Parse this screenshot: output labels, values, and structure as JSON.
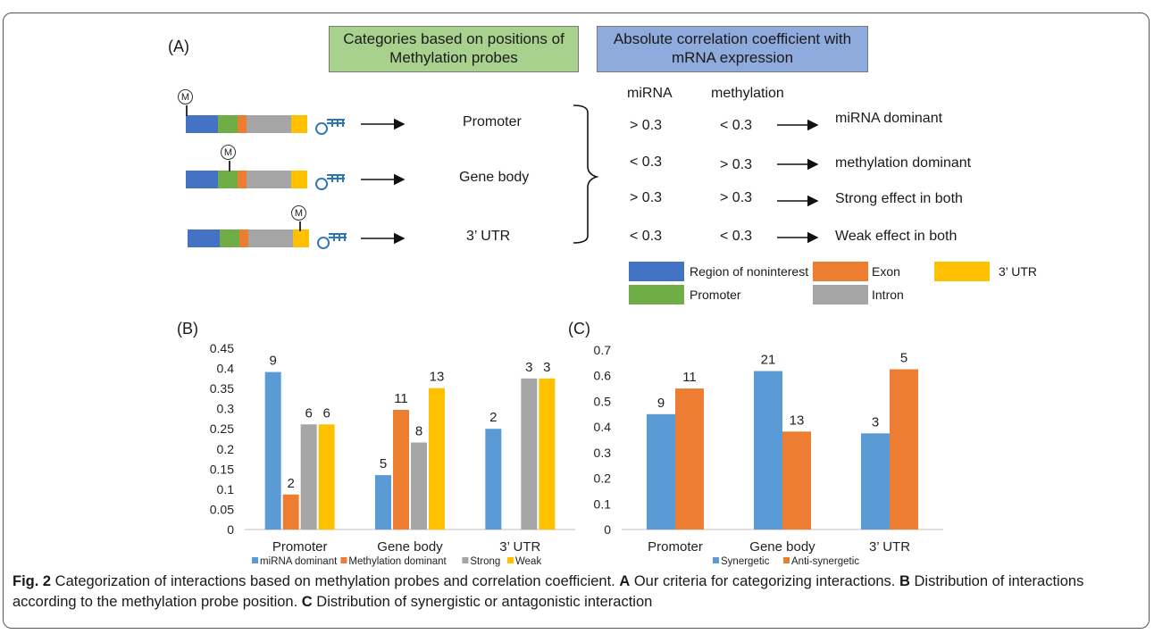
{
  "panel_a": {
    "letter": "(A)",
    "header_left": [
      "Categories based on positions of",
      "Methylation probes"
    ],
    "header_right": [
      "Absolute correlation coefficient with",
      "mRNA expression"
    ],
    "probe_marker": "M",
    "categories": [
      "Promoter",
      "Gene body",
      "3’ UTR"
    ],
    "col_mirna": "miRNA",
    "col_methylation": "methylation",
    "rules": [
      {
        "mirna": "> 0.3",
        "methylation": "< 0.3",
        "result": "miRNA dominant"
      },
      {
        "mirna": "< 0.3",
        "methylation": "> 0.3",
        "result": "methylation dominant"
      },
      {
        "mirna": "> 0.3",
        "methylation": "> 0.3",
        "result": "Strong effect in both"
      },
      {
        "mirna": "< 0.3",
        "methylation": "< 0.3",
        "result": "Weak effect in both"
      }
    ],
    "legend": [
      {
        "label": "Region of noninterest",
        "color": "#4472c4"
      },
      {
        "label": "Exon",
        "color": "#ed7d31"
      },
      {
        "label": "3’ UTR",
        "color": "#ffc000"
      },
      {
        "label": "Promoter",
        "color": "#70ad47"
      },
      {
        "label": "Intron",
        "color": "#a5a5a5"
      }
    ],
    "colors": {
      "header_left_bg": "#a9d18e",
      "header_right_bg": "#8faadc",
      "hairpin": "#2e75b6"
    }
  },
  "chart_data": [
    {
      "panel": "(B)",
      "type": "bar",
      "categories": [
        "Promoter",
        "Gene body",
        "3’ UTR"
      ],
      "series": [
        {
          "name": "miRNA dominant",
          "color": "#5b9bd5",
          "values": [
            0.391,
            0.135,
            0.25
          ],
          "labels": [
            "9",
            "5",
            "2"
          ]
        },
        {
          "name": "Methylation dominant",
          "color": "#ed7d31",
          "values": [
            0.087,
            0.297,
            null
          ],
          "labels": [
            "2",
            "11",
            ""
          ]
        },
        {
          "name": "Strong",
          "color": "#a5a5a5",
          "values": [
            0.261,
            0.216,
            0.375
          ],
          "labels": [
            "6",
            "8",
            "3"
          ]
        },
        {
          "name": "Weak",
          "color": "#ffc000",
          "values": [
            0.261,
            0.351,
            0.375
          ],
          "labels": [
            "6",
            "13",
            "3"
          ]
        }
      ],
      "ylim": [
        0,
        0.45
      ],
      "yticks": [
        "0",
        "0.05",
        "0.1",
        "0.15",
        "0.2",
        "0.25",
        "0.3",
        "0.35",
        "0.4",
        "0.45"
      ],
      "xlabel": "",
      "ylabel": "",
      "legend_position": "bottom"
    },
    {
      "panel": "(C)",
      "type": "bar",
      "categories": [
        "Promoter",
        "Gene body",
        "3’ UTR"
      ],
      "series": [
        {
          "name": "Synergetic",
          "color": "#5b9bd5",
          "values": [
            0.45,
            0.618,
            0.375
          ],
          "labels": [
            "9",
            "21",
            "3"
          ]
        },
        {
          "name": "Anti-synergetic",
          "color": "#ed7d31",
          "values": [
            0.55,
            0.382,
            0.625
          ],
          "labels": [
            "11",
            "13",
            "5"
          ]
        }
      ],
      "ylim": [
        0,
        0.7
      ],
      "yticks": [
        "0",
        "0.1",
        "0.2",
        "0.3",
        "0.4",
        "0.5",
        "0.6",
        "0.7"
      ],
      "xlabel": "",
      "ylabel": "",
      "legend_position": "bottom"
    }
  ],
  "caption": {
    "fig_label": "Fig. 2",
    "title": " Categorization of interactions based on methylation probes and correlation coefficient. ",
    "a_label": "A",
    "a_text": " Our criteria for categorizing interactions. ",
    "b_label": "B",
    "b_text": " Distribution of interactions according to the methylation probe position. ",
    "c_label": "C",
    "c_text": " Distribution of synergistic or antagonistic interaction"
  }
}
